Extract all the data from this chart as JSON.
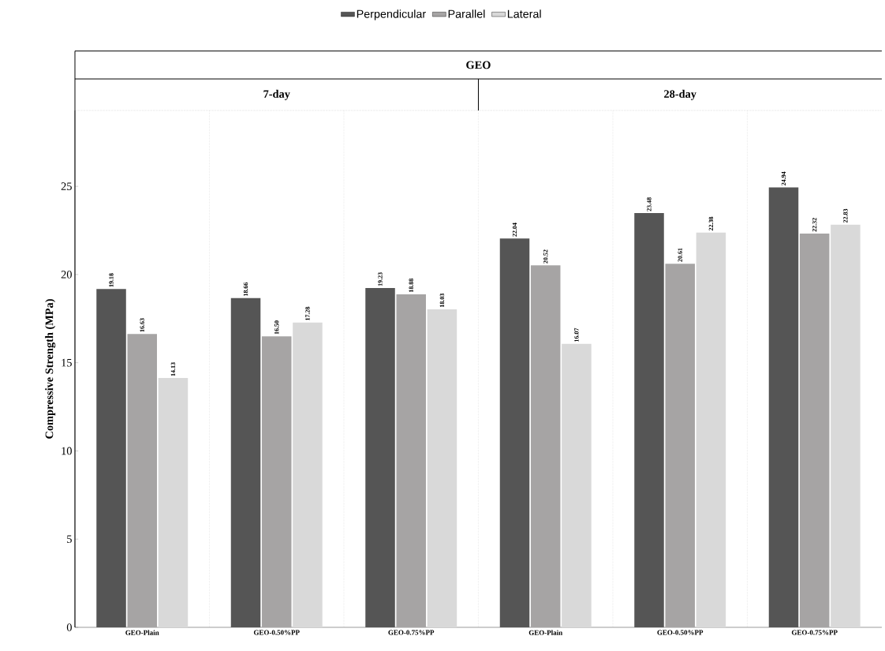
{
  "chart_data": {
    "type": "bar",
    "title": "GEO",
    "annotations": [
      "7-day",
      "28-day"
    ],
    "categories": [
      "GEO-Plain",
      "GEO-0.50%PP",
      "GEO-0.75%PP",
      "GEO-Plain",
      "GEO-0.50%PP",
      "GEO-0.75%PP"
    ],
    "series": [
      {
        "name": "Perpendicular",
        "color": "#555555",
        "values": [
          19.18,
          18.66,
          19.23,
          22.04,
          23.48,
          24.94
        ],
        "value_labels": [
          "19.18",
          "18.66",
          "19.23",
          "22.04",
          "23.48",
          "24.94"
        ]
      },
      {
        "name": "Parallel",
        "color": "#a6a4a4",
        "values": [
          16.63,
          16.5,
          18.88,
          20.52,
          20.61,
          22.32
        ],
        "value_labels": [
          "16.63",
          "16.50",
          "18.88",
          "20.52",
          "20.61",
          "22.32"
        ]
      },
      {
        "name": "Lateral",
        "color": "#d9d9d9",
        "values": [
          14.13,
          17.28,
          18.03,
          16.07,
          22.38,
          22.83
        ],
        "value_labels": [
          "14.13",
          "17.28",
          "18.03",
          "16.07",
          "22.38",
          "22.83"
        ]
      }
    ],
    "ylabel": "Compressive Strength (MPa)",
    "ylim": [
      0,
      29.3
    ],
    "yticks": [
      0,
      5,
      10,
      15,
      20,
      25
    ],
    "legend": "top"
  }
}
